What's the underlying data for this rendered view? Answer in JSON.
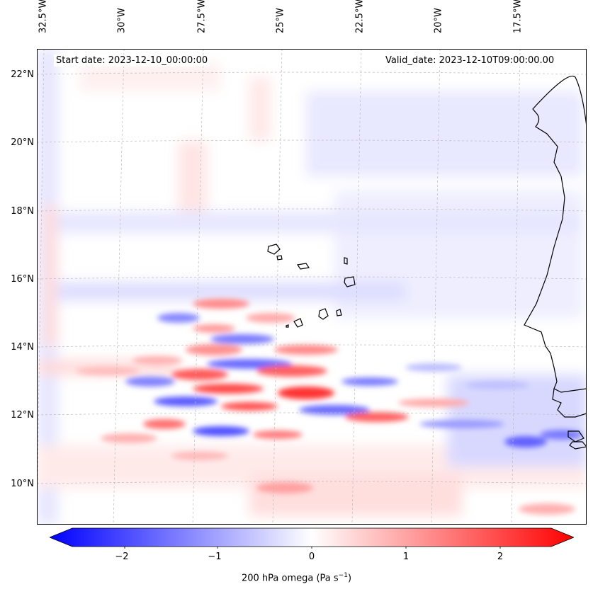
{
  "map": {
    "start_date_label": "Start date: 2023-12-10_00:00:00",
    "valid_date_label": "Valid_date: 2023-12-10T09:00:00.00",
    "longitude_labels": [
      "32.5°W",
      "30°W",
      "27.5°W",
      "25°W",
      "22.5°W",
      "20°W",
      "17.5°W"
    ],
    "latitude_labels": [
      "22°N",
      "20°N",
      "18°N",
      "16°N",
      "14°N",
      "12°N",
      "10°N"
    ],
    "field_name": "200 hPa omega",
    "colors": {
      "negative": "#0000ff",
      "zero": "#ffffff",
      "positive": "#ff0000",
      "coast": "#000000"
    }
  },
  "colorbar": {
    "label_main": "200 hPa omega (Pa s",
    "label_exp": "−1",
    "label_end": ")",
    "tick_labels": [
      "−2",
      "−1",
      "0",
      "1",
      "2"
    ],
    "min": -2.7,
    "max": 2.7
  }
}
